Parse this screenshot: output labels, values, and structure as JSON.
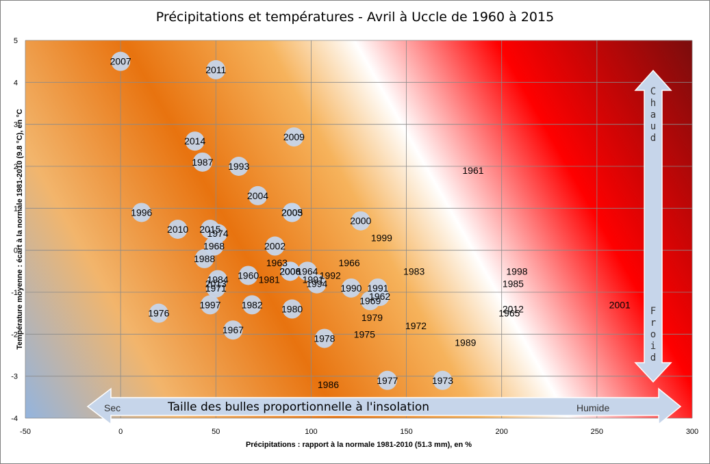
{
  "chart_data": {
    "type": "scatter",
    "subtype": "bubble",
    "title": "Précipitations et températures - Avril à Uccle de 1960 à 2015",
    "xlabel": "Précipitations : rapport à la normale 1981-2010  (51.3 mm), en %",
    "ylabel": "Température moyenne : écart à  la normale 1981-2010  (9.8 °C), en °C",
    "xlim": [
      -50,
      300
    ],
    "ylim": [
      -4,
      5
    ],
    "xticks": [
      -50,
      0,
      50,
      100,
      150,
      200,
      250,
      300
    ],
    "yticks": [
      -4,
      -3,
      -2,
      -1,
      0,
      1,
      2,
      3,
      4,
      5
    ],
    "grid": true,
    "highlight_color": "#ff0000",
    "bubble_color": "#c6d5ea",
    "annotations": {
      "dry": "Sec",
      "wet": "Humide",
      "bubble_size": "Taille des bulles proportionnelle à l'insolation",
      "hot": "Chaud",
      "cold": "Froid"
    },
    "points": [
      {
        "year": "2007",
        "x": 0,
        "y": 4.5,
        "bubble": true
      },
      {
        "year": "2011",
        "x": 50,
        "y": 4.3,
        "bubble": true
      },
      {
        "year": "2009",
        "x": 91,
        "y": 2.7,
        "bubble": true
      },
      {
        "year": "2014",
        "x": 39,
        "y": 2.6,
        "bubble": true
      },
      {
        "year": "1987",
        "x": 43,
        "y": 2.1,
        "bubble": true
      },
      {
        "year": "1993",
        "x": 62,
        "y": 2.0,
        "bubble": true
      },
      {
        "year": "1961",
        "x": 185,
        "y": 1.9,
        "bubble": false
      },
      {
        "year": "2004",
        "x": 72,
        "y": 1.3,
        "bubble": true
      },
      {
        "year": "1996",
        "x": 11,
        "y": 0.9,
        "bubble": true
      },
      {
        "year": "2005",
        "x": 90,
        "y": 0.9,
        "bubble": true
      },
      {
        "year": "2003",
        "x": 90,
        "y": 0.9,
        "bubble": true
      },
      {
        "year": "2000",
        "x": 126,
        "y": 0.7,
        "bubble": true
      },
      {
        "year": "2010",
        "x": 30,
        "y": 0.5,
        "bubble": true
      },
      {
        "year": "2015",
        "x": 47,
        "y": 0.5,
        "bubble": true,
        "highlight": true
      },
      {
        "year": "1974",
        "x": 51,
        "y": 0.4,
        "bubble": true
      },
      {
        "year": "1999",
        "x": 137,
        "y": 0.3,
        "bubble": false
      },
      {
        "year": "1968",
        "x": 49,
        "y": 0.1,
        "bubble": true
      },
      {
        "year": "2002",
        "x": 81,
        "y": 0.1,
        "bubble": true
      },
      {
        "year": "1988",
        "x": 44,
        "y": -0.2,
        "bubble": true
      },
      {
        "year": "1963",
        "x": 82,
        "y": -0.3,
        "bubble": false
      },
      {
        "year": "1966",
        "x": 120,
        "y": -0.3,
        "bubble": false
      },
      {
        "year": "1983",
        "x": 154,
        "y": -0.5,
        "bubble": false
      },
      {
        "year": "1998",
        "x": 208,
        "y": -0.5,
        "bubble": false
      },
      {
        "year": "2008",
        "x": 89,
        "y": -0.5,
        "bubble": true
      },
      {
        "year": "2006",
        "x": 89,
        "y": -0.5,
        "bubble": true
      },
      {
        "year": "1964",
        "x": 98,
        "y": -0.5,
        "bubble": true
      },
      {
        "year": "1992",
        "x": 110,
        "y": -0.6,
        "bubble": false
      },
      {
        "year": "1960",
        "x": 67,
        "y": -0.6,
        "bubble": true
      },
      {
        "year": "1991",
        "x": 101,
        "y": -0.7,
        "bubble": false
      },
      {
        "year": "1981",
        "x": 78,
        "y": -0.7,
        "bubble": false
      },
      {
        "year": "1984",
        "x": 51,
        "y": -0.7,
        "bubble": true
      },
      {
        "year": "1994",
        "x": 103,
        "y": -0.8,
        "bubble": true
      },
      {
        "year": "2013",
        "x": 50,
        "y": -0.8,
        "bubble": true
      },
      {
        "year": "1985",
        "x": 206,
        "y": -0.8,
        "bubble": false
      },
      {
        "year": "1971",
        "x": 50,
        "y": -0.9,
        "bubble": true
      },
      {
        "year": "1990",
        "x": 121,
        "y": -0.9,
        "bubble": true
      },
      {
        "year": "1991",
        "x": 135,
        "y": -0.9,
        "bubble": true
      },
      {
        "year": "1962",
        "x": 136,
        "y": -1.1,
        "bubble": true
      },
      {
        "year": "1969",
        "x": 131,
        "y": -1.2,
        "bubble": true
      },
      {
        "year": "1997",
        "x": 47,
        "y": -1.3,
        "bubble": true
      },
      {
        "year": "1982",
        "x": 69,
        "y": -1.3,
        "bubble": true
      },
      {
        "year": "1980",
        "x": 90,
        "y": -1.4,
        "bubble": true
      },
      {
        "year": "2012",
        "x": 206,
        "y": -1.4,
        "bubble": false
      },
      {
        "year": "2001",
        "x": 262,
        "y": -1.3,
        "bubble": false
      },
      {
        "year": "1965",
        "x": 204,
        "y": -1.5,
        "bubble": false
      },
      {
        "year": "1976",
        "x": 20,
        "y": -1.5,
        "bubble": true
      },
      {
        "year": "1979",
        "x": 132,
        "y": -1.6,
        "bubble": false
      },
      {
        "year": "1972",
        "x": 155,
        "y": -1.8,
        "bubble": false
      },
      {
        "year": "1967",
        "x": 59,
        "y": -1.9,
        "bubble": true
      },
      {
        "year": "1975",
        "x": 128,
        "y": -2.0,
        "bubble": false
      },
      {
        "year": "1978",
        "x": 107,
        "y": -2.1,
        "bubble": true
      },
      {
        "year": "1989",
        "x": 181,
        "y": -2.2,
        "bubble": false
      },
      {
        "year": "1977",
        "x": 140,
        "y": -3.1,
        "bubble": true
      },
      {
        "year": "1973",
        "x": 169,
        "y": -3.1,
        "bubble": true
      },
      {
        "year": "1986",
        "x": 109,
        "y": -3.2,
        "bubble": false
      }
    ]
  }
}
